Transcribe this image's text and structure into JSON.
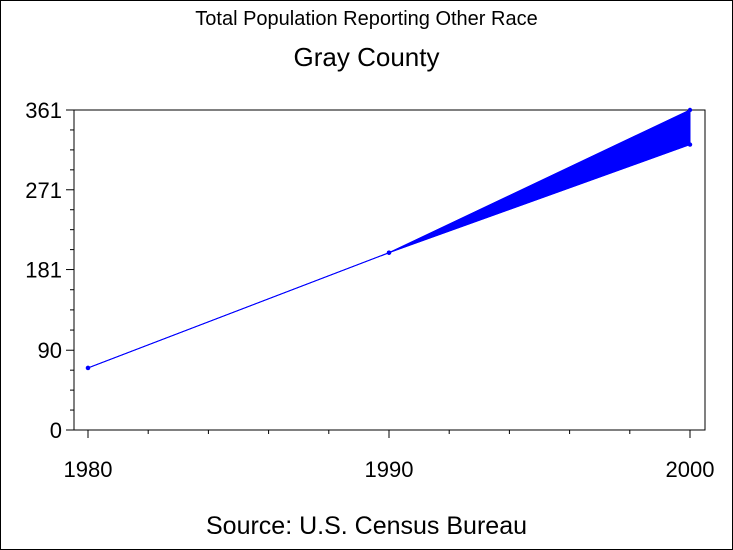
{
  "title": "Total Population Reporting Other Race",
  "subtitle": "Gray County",
  "source": "Source: U.S. Census Bureau",
  "colors": {
    "series": "#0000ff",
    "axis": "#000000",
    "background": "#ffffff"
  },
  "chart_data": {
    "type": "line",
    "title": "Total Population Reporting Other Race",
    "subtitle": "Gray County",
    "xlabel": "",
    "ylabel": "",
    "x": [
      1980,
      1990,
      2000
    ],
    "xlim": [
      1980,
      2000
    ],
    "ylim": [
      0,
      361
    ],
    "x_ticks": [
      "1980",
      "1990",
      "2000"
    ],
    "y_ticks": [
      "0",
      "90",
      "181",
      "271",
      "361"
    ],
    "series": [
      {
        "values": [
          70,
          200,
          361
        ]
      },
      {
        "values": [
          70,
          200,
          322
        ]
      }
    ],
    "fill_between_series": true,
    "grid": false
  }
}
